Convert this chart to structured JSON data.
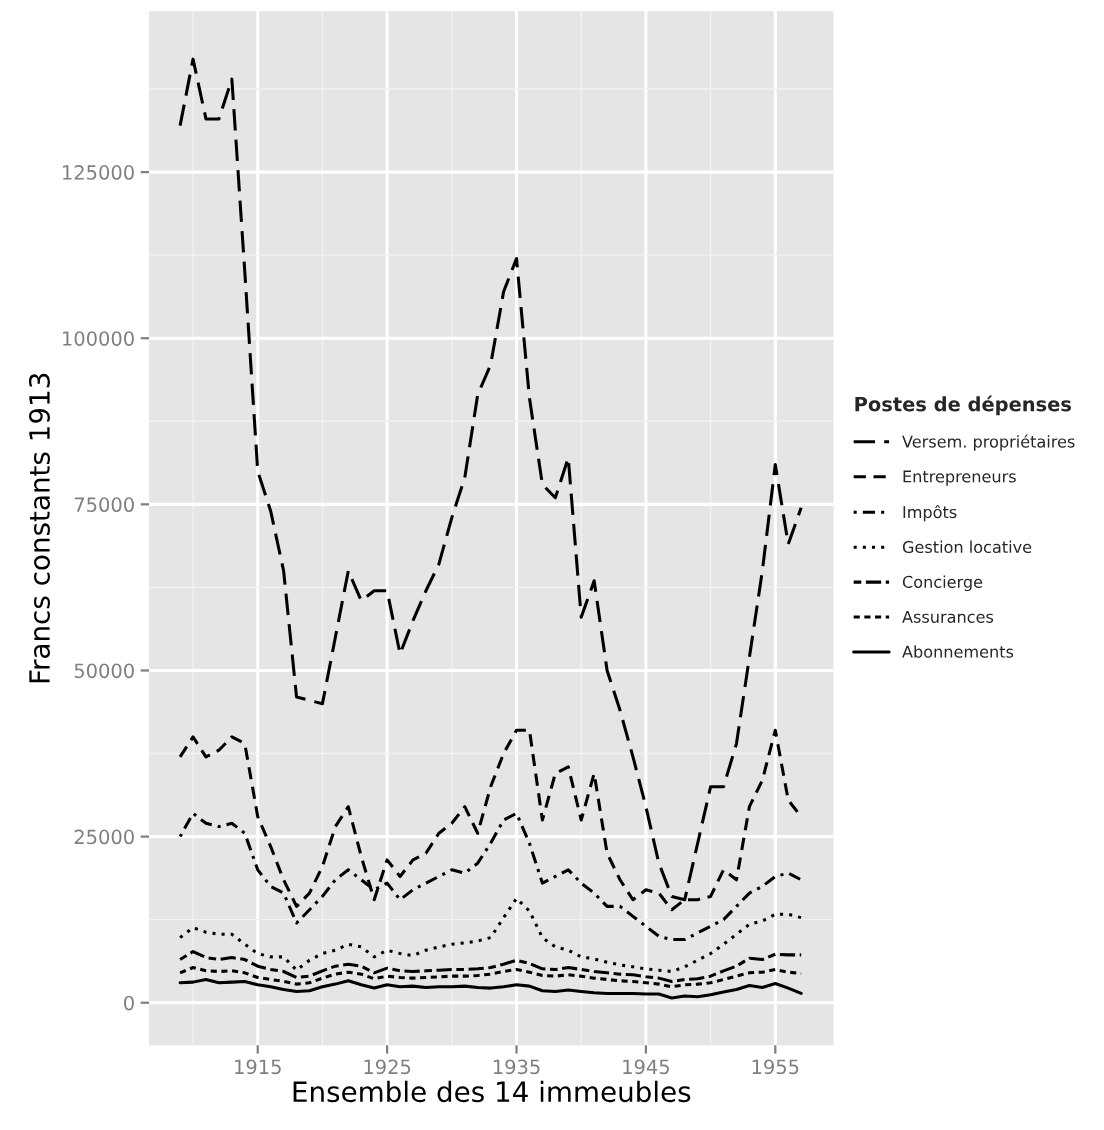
{
  "chart_data": {
    "type": "line",
    "xlabel": "Ensemble des 14 immeubles",
    "ylabel": "Francs constants 1913",
    "legend_title": "Postes de dépenses",
    "x": [
      1909,
      1910,
      1911,
      1912,
      1913,
      1914,
      1915,
      1916,
      1917,
      1918,
      1919,
      1920,
      1921,
      1922,
      1923,
      1924,
      1925,
      1926,
      1927,
      1928,
      1929,
      1930,
      1931,
      1932,
      1933,
      1934,
      1935,
      1936,
      1937,
      1938,
      1939,
      1940,
      1941,
      1942,
      1943,
      1944,
      1945,
      1946,
      1947,
      1948,
      1949,
      1950,
      1951,
      1952,
      1953,
      1954,
      1955,
      1956,
      1957
    ],
    "series": [
      {
        "name": "Versem. propriétaires",
        "color": "#000000",
        "line_style": "longdash",
        "values": [
          132000,
          142000,
          133000,
          133000,
          139000,
          110000,
          80000,
          74000,
          65000,
          46000,
          45500,
          45000,
          55000,
          65000,
          60500,
          62000,
          62000,
          52500,
          57500,
          62000,
          66000,
          73000,
          79000,
          91500,
          96000,
          107000,
          112000,
          91000,
          78000,
          76000,
          82000,
          58000,
          63500,
          50000,
          44000,
          37000,
          29500,
          21000,
          16000,
          15500,
          24000,
          32500,
          32500,
          39000,
          52000,
          65000,
          81000,
          69000,
          74500
        ]
      },
      {
        "name": "Entrepreneurs",
        "color": "#000000",
        "line_style": "dashed",
        "values": [
          37000,
          40000,
          37000,
          38000,
          40000,
          39000,
          28000,
          23500,
          18500,
          14500,
          16500,
          20500,
          26500,
          29500,
          22000,
          15500,
          21500,
          19000,
          21500,
          22500,
          25500,
          27000,
          29500,
          25500,
          32500,
          37500,
          41000,
          41000,
          27500,
          34500,
          35500,
          27500,
          34500,
          22500,
          18500,
          15500,
          17000,
          16500,
          14000,
          15500,
          15500,
          16000,
          20000,
          18500,
          29500,
          33500,
          41000,
          30500,
          28000
        ]
      },
      {
        "name": "Impôts",
        "color": "#000000",
        "line_style": "dashdot",
        "values": [
          25000,
          28500,
          27000,
          26500,
          27000,
          25500,
          20000,
          17500,
          16500,
          12000,
          14000,
          16000,
          18500,
          20000,
          18500,
          17000,
          18000,
          15500,
          17000,
          18000,
          19000,
          20000,
          19500,
          21000,
          24000,
          27500,
          28500,
          24000,
          18000,
          19000,
          20000,
          18000,
          16500,
          14500,
          14500,
          13000,
          11500,
          10000,
          9500,
          9500,
          10500,
          11500,
          12500,
          14500,
          16500,
          17500,
          19000,
          19500,
          18500
        ]
      },
      {
        "name": "Gestion locative",
        "color": "#000000",
        "line_style": "dotted",
        "values": [
          9800,
          11300,
          10600,
          10300,
          10300,
          8800,
          7400,
          6900,
          6900,
          4900,
          6400,
          7400,
          7900,
          8800,
          8400,
          6900,
          7900,
          7400,
          7100,
          7900,
          8400,
          8800,
          9000,
          9300,
          9800,
          12800,
          15700,
          13800,
          9800,
          8400,
          7900,
          6900,
          6600,
          6100,
          5700,
          5400,
          5100,
          4900,
          4700,
          5400,
          6400,
          7400,
          8800,
          10300,
          11800,
          12300,
          13300,
          13300,
          12800
        ]
      },
      {
        "name": "Concierge",
        "color": "#000000",
        "line_style": "twodash",
        "values": [
          6500,
          7700,
          6800,
          6500,
          6800,
          6500,
          5500,
          5000,
          4700,
          3800,
          4000,
          4800,
          5500,
          5800,
          5500,
          4500,
          5200,
          4800,
          4700,
          4800,
          4900,
          5000,
          5000,
          5100,
          5300,
          5800,
          6400,
          5900,
          5100,
          5000,
          5300,
          5000,
          4700,
          4500,
          4300,
          4200,
          3900,
          3700,
          3200,
          3500,
          3600,
          4000,
          4800,
          5500,
          6700,
          6500,
          7300,
          7200,
          7200
        ]
      },
      {
        "name": "Assurances",
        "color": "#000000",
        "line_style": "densedash",
        "values": [
          4500,
          5300,
          4800,
          4700,
          4800,
          4500,
          3800,
          3500,
          3200,
          2800,
          3000,
          3700,
          4300,
          4600,
          4300,
          3600,
          4000,
          3800,
          3700,
          3800,
          3900,
          4000,
          4000,
          4100,
          4300,
          4700,
          5000,
          4600,
          4100,
          4000,
          4200,
          4000,
          3700,
          3500,
          3300,
          3200,
          3000,
          2800,
          2400,
          2700,
          2800,
          3000,
          3500,
          4000,
          4500,
          4600,
          5000,
          4600,
          4400
        ]
      },
      {
        "name": "Abonnements",
        "color": "#000000",
        "line_style": "solid",
        "values": [
          3000,
          3100,
          3500,
          3000,
          3100,
          3200,
          2700,
          2400,
          2000,
          1700,
          1800,
          2400,
          2800,
          3300,
          2700,
          2200,
          2700,
          2400,
          2500,
          2300,
          2400,
          2400,
          2500,
          2300,
          2200,
          2400,
          2700,
          2500,
          1800,
          1700,
          1900,
          1700,
          1500,
          1400,
          1400,
          1400,
          1300,
          1300,
          700,
          1000,
          900,
          1200,
          1600,
          2000,
          2600,
          2300,
          2900,
          2200,
          1400
        ]
      }
    ],
    "xlim": [
      1906.6,
      1959.5
    ],
    "xticks": [
      1915,
      1925,
      1935,
      1945,
      1955
    ],
    "ylim": [
      -6400,
      149200
    ],
    "yticks": [
      0,
      25000,
      50000,
      75000,
      100000,
      125000
    ],
    "grid": true,
    "legend": "right"
  }
}
